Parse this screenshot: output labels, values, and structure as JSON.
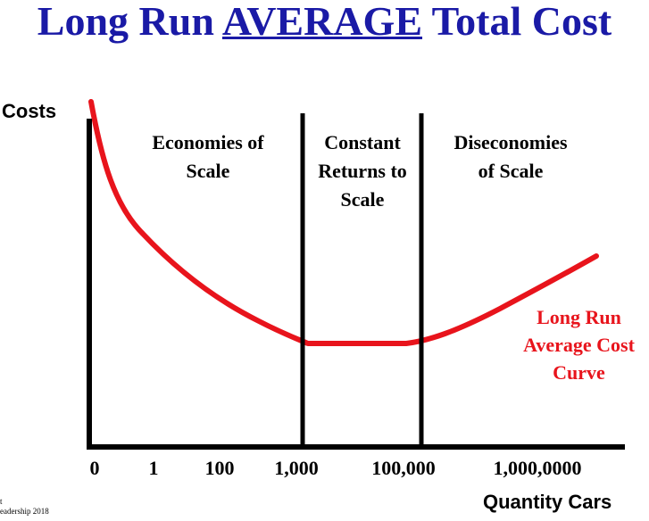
{
  "chart_data": {
    "type": "line",
    "title_prefix": "Long Run ",
    "title_emphasis": "AVERAGE",
    "title_suffix": " Total Cost",
    "ylabel": "Costs",
    "xlabel": "Quantity Cars",
    "x_ticks": [
      "0",
      "1",
      "100",
      "1,000",
      "100,000",
      "1,000,0000"
    ],
    "regions": [
      {
        "label_lines": [
          "Economies of",
          "Scale"
        ]
      },
      {
        "label_lines": [
          "Constant",
          "Returns to",
          "Scale"
        ]
      },
      {
        "label_lines": [
          "Diseconomies",
          "of Scale"
        ]
      }
    ],
    "series": [
      {
        "name_lines": [
          "Long Run",
          "Average Cost",
          "Curve"
        ],
        "color": "#e8141c",
        "shape": "U-shaped: falling, flat, then rising"
      }
    ],
    "axis_color": "#000000",
    "title_color": "#1a1aa6"
  },
  "footer_lines": [
    "t",
    "eadership 2018"
  ]
}
